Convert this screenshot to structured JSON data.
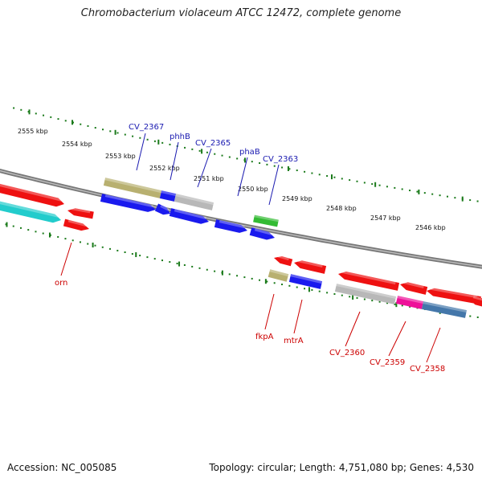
{
  "title": "Chromobacterium violaceum ATCC 12472, complete genome",
  "footer": {
    "accession": "Accession: NC_005085",
    "stats": "Topology: circular; Length: 4,751,080 bp; Genes: 4,530"
  },
  "ticks": [
    "2555 kbp",
    "2554 kbp",
    "2553 kbp",
    "2552 kbp",
    "2551 kbp",
    "2550 kbp",
    "2549 kbp",
    "2548 kbp",
    "2547 kbp",
    "2546 kbp"
  ],
  "gene_labels": {
    "top": [
      "CV_2367",
      "phhB",
      "CV_2365",
      "phaB",
      "CV_2363"
    ],
    "bottom": [
      "orn",
      "fkpA",
      "mtrA",
      "CV_2360",
      "CV_2359",
      "CV_2358"
    ]
  },
  "colors": {
    "red": "#ee1111",
    "blue": "#1a1aee",
    "olive": "#b8b070",
    "gray": "#b8b8b8",
    "green": "#33bb33",
    "cyan": "#22cccc",
    "magenta": "#ee1199",
    "steelblue": "#4477aa",
    "label_blue": "#1a1ab0",
    "label_red": "#cc0000",
    "tick_green": "#1a7a1a"
  }
}
